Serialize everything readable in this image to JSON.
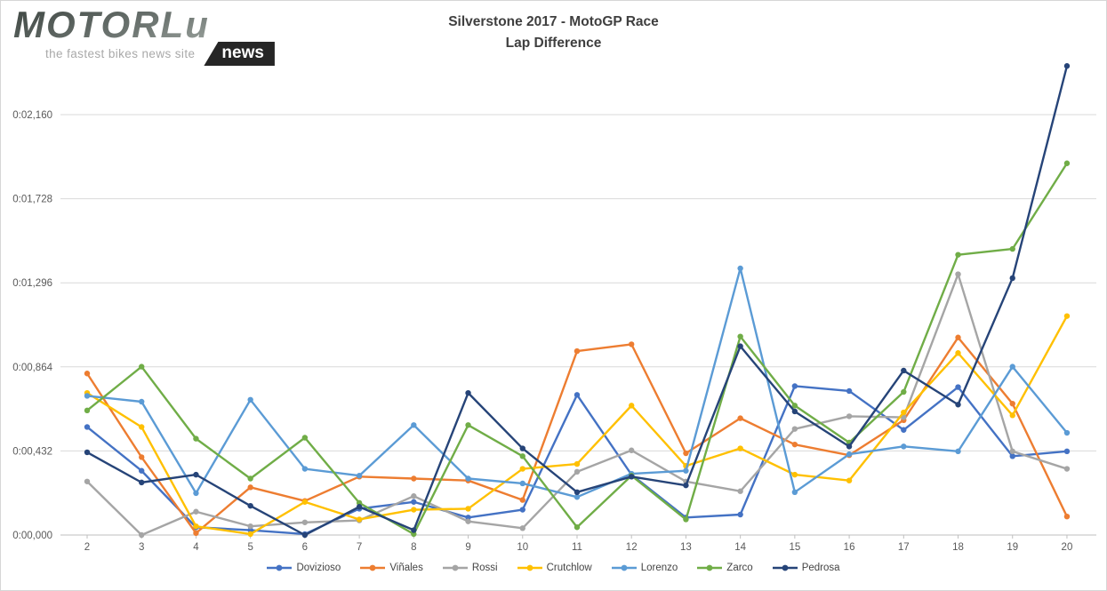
{
  "logo": {
    "brand": "MOTORLu",
    "tagline": "the fastest bikes news site",
    "badge": "news"
  },
  "title": {
    "line1": "Silverstone 2017 - MotoGP Race",
    "line2": "Lap Difference"
  },
  "chart_data": {
    "type": "line",
    "title": "Silverstone 2017 - MotoGP Race Lap Difference",
    "xlabel": "",
    "ylabel": "",
    "x": [
      2,
      3,
      4,
      5,
      6,
      7,
      8,
      9,
      10,
      11,
      12,
      13,
      14,
      15,
      16,
      17,
      18,
      19,
      20
    ],
    "value_format": "m:ss,fff (milliseconds)",
    "y_axis_labels": [
      "0:00,000",
      "0:00,432",
      "0:00,864",
      "0:01,296",
      "0:01,728",
      "0:02,160"
    ],
    "y_tick_values_ms": [
      0,
      432,
      864,
      1296,
      1728,
      2160
    ],
    "y_gridline_step_ms": 432,
    "ylim_ms": [
      0,
      2470
    ],
    "grid": true,
    "legend_position": "bottom",
    "series": [
      {
        "name": "Dovizioso",
        "color": "#4472C4",
        "values_ms": [
          555,
          330,
          40,
          25,
          5,
          135,
          170,
          90,
          130,
          720,
          310,
          90,
          105,
          765,
          740,
          540,
          760,
          405,
          430
        ]
      },
      {
        "name": "Viñales",
        "color": "#ED7D31",
        "values_ms": [
          830,
          400,
          10,
          245,
          175,
          300,
          290,
          280,
          180,
          945,
          980,
          420,
          600,
          465,
          410,
          590,
          1015,
          675,
          95
        ]
      },
      {
        "name": "Rossi",
        "color": "#A5A5A5",
        "values_ms": [
          275,
          0,
          120,
          45,
          65,
          75,
          200,
          70,
          35,
          325,
          435,
          275,
          225,
          545,
          610,
          605,
          1340,
          430,
          340
        ]
      },
      {
        "name": "Crutchlow",
        "color": "#FFC000",
        "values_ms": [
          730,
          555,
          45,
          5,
          170,
          80,
          130,
          135,
          340,
          365,
          665,
          355,
          445,
          310,
          280,
          630,
          935,
          615,
          1125
        ]
      },
      {
        "name": "Lorenzo",
        "color": "#5B9BD5",
        "values_ms": [
          715,
          685,
          215,
          695,
          340,
          305,
          565,
          290,
          265,
          195,
          315,
          330,
          1370,
          220,
          415,
          455,
          430,
          865,
          525
        ]
      },
      {
        "name": "Zarco",
        "color": "#70AD47",
        "values_ms": [
          640,
          865,
          495,
          290,
          500,
          165,
          5,
          565,
          405,
          40,
          305,
          80,
          1020,
          665,
          475,
          735,
          1440,
          1470,
          1910
        ]
      },
      {
        "name": "Pedrosa",
        "color": "#264478",
        "values_ms": [
          425,
          270,
          310,
          150,
          0,
          145,
          25,
          730,
          445,
          220,
          300,
          255,
          970,
          635,
          455,
          845,
          670,
          1320,
          2410
        ]
      }
    ],
    "style": {
      "gridline_color": "#D9D9D9",
      "axis_color": "#BFBFBF",
      "tick_label_color": "#595959"
    }
  }
}
